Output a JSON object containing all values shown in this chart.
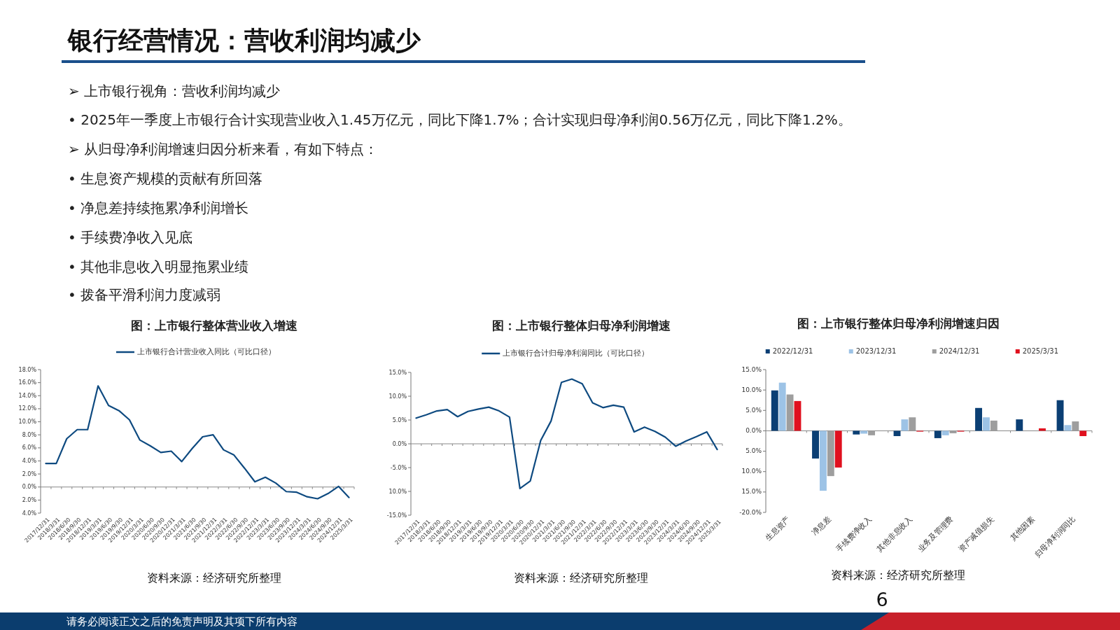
{
  "chart_data": [
    {
      "type": "other",
      "title": "银行经营情况：营收利润均减少",
      "annotations": [
        "➢ 上市银行视角：营收利润均减少",
        "• 2025年一季度上市银行合计实现营业收入1.45万亿元，同比下降1.7%；合计实现归母净利润0.56万亿元，同比下降1.2%。",
        "➢ 从归母净利润增速归因分析来看，有如下特点：",
        "• 生息资产规模的贡献有所回落",
        "• 净息差持续拖累净利润增长",
        "• 手续费净收入见底",
        "• 其他非息收入明显拖累业绩",
        "• 拨备平滑利润力度减弱",
        "请务必阅读正文之后的免责声明及其项下所有内容",
        "6"
      ]
    },
    {
      "type": "line",
      "title": "图：上市银行整体营业收入增速",
      "categories": [
        "2017/12/31",
        "2018/3/31",
        "2018/6/30",
        "2018/9/30",
        "2018/12/31",
        "2019/3/31",
        "2019/6/30",
        "2019/9/30",
        "2019/12/31",
        "2020/3/31",
        "2020/6/30",
        "2020/9/30",
        "2020/12/31",
        "2021/3/31",
        "2021/6/30",
        "2021/9/30",
        "2021/12/31",
        "2022/3/31",
        "2022/6/30",
        "2022/9/30",
        "2022/12/31",
        "2023/3/31",
        "2023/6/30",
        "2023/9/30",
        "2023/12/31",
        "2024/3/31",
        "2024/6/30",
        "2024/9/30",
        "2024/12/31",
        "2025/3/31"
      ],
      "series": [
        {
          "name": "上市银行合计营业收入同比（可比口径）",
          "color": "#0e4a80",
          "values": [
            3.6,
            3.6,
            7.4,
            8.8,
            8.8,
            15.5,
            12.5,
            11.7,
            10.3,
            7.2,
            6.3,
            5.3,
            5.5,
            3.9,
            5.9,
            7.7,
            8.0,
            5.7,
            4.9,
            2.9,
            0.8,
            1.5,
            0.6,
            -0.7,
            -0.8,
            -1.5,
            -1.8,
            -1.0,
            0.1,
            -1.6
          ]
        }
      ],
      "ylim": [
        -4,
        18
      ],
      "yticks": [
        {
          "value": -4,
          "label": "4.0%"
        },
        {
          "value": -2,
          "label": "2.0%"
        },
        {
          "value": 0,
          "label": "0.0%"
        },
        {
          "value": 2,
          "label": "2.0%"
        },
        {
          "value": 4,
          "label": "4.0%"
        },
        {
          "value": 6,
          "label": "6.0%"
        },
        {
          "value": 8,
          "label": "8.0%"
        },
        {
          "value": 10,
          "label": "10.0%"
        },
        {
          "value": 12,
          "label": "12.0%"
        },
        {
          "value": 14,
          "label": "14.0%"
        },
        {
          "value": 16,
          "label": "16.0%"
        },
        {
          "value": 18,
          "label": "18.0%"
        }
      ],
      "legend": "top",
      "annotations": [
        "资料来源：经济研究所整理"
      ]
    },
    {
      "type": "line",
      "title": "图：上市银行整体归母净利润增速",
      "categories": [
        "2017/12/31",
        "2018/3/31",
        "2018/6/30",
        "2018/9/30",
        "2018/12/31",
        "2019/3/31",
        "2019/6/30",
        "2019/9/30",
        "2019/12/31",
        "2020/3/31",
        "2020/6/30",
        "2020/9/30",
        "2020/12/31",
        "2021/3/31",
        "2021/6/30",
        "2021/9/30",
        "2021/12/31",
        "2022/3/31",
        "2022/6/30",
        "2022/9/30",
        "2022/12/31",
        "2023/3/31",
        "2023/6/30",
        "2023/9/30",
        "2023/12/31",
        "2024/3/31",
        "2024/6/30",
        "2024/9/30",
        "2024/12/31",
        "2025/3/31"
      ],
      "series": [
        {
          "name": "上市银行合计归母净利润同比（可比口径）",
          "color": "#0e4a80",
          "values": [
            5.4,
            6.1,
            6.9,
            7.2,
            5.7,
            6.8,
            7.3,
            7.7,
            6.9,
            5.6,
            -9.4,
            -7.8,
            0.7,
            4.8,
            12.9,
            13.6,
            12.6,
            8.6,
            7.6,
            8.1,
            7.7,
            2.5,
            3.5,
            2.6,
            1.4,
            -0.5,
            0.6,
            1.5,
            2.5,
            -1.2
          ]
        }
      ],
      "ylim": [
        -15,
        15
      ],
      "yticks": [
        {
          "value": -15,
          "label": "-15.0%"
        },
        {
          "value": -10,
          "label": "10.0%"
        },
        {
          "value": -5,
          "label": "-5.0%"
        },
        {
          "value": 0,
          "label": "0.0%"
        },
        {
          "value": 5,
          "label": "5.0%"
        },
        {
          "value": 10,
          "label": "10.0%"
        },
        {
          "value": 15,
          "label": "15.0%"
        }
      ],
      "legend": "top",
      "annotations": [
        "资料来源：经济研究所整理"
      ]
    },
    {
      "type": "bar",
      "title": "图：上市银行整体归母净利润增速归因",
      "categories": [
        "生息资产",
        "净息差",
        "手续费净收入",
        "其他非息收入",
        "业务及管理费",
        "资产减值损失",
        "其他因素",
        "归母净利润同比"
      ],
      "series": [
        {
          "name": "2022/12/31",
          "color": "#0b3f74",
          "values": [
            9.9,
            -6.8,
            -0.9,
            -1.3,
            -1.8,
            5.6,
            2.8,
            7.5
          ]
        },
        {
          "name": "2023/12/31",
          "color": "#9dc3e6",
          "values": [
            11.8,
            -14.7,
            -0.7,
            2.8,
            -1.1,
            3.3,
            null,
            1.4
          ]
        },
        {
          "name": "2024/12/31",
          "color": "#9e9e9e",
          "values": [
            8.9,
            -11.1,
            -1.1,
            3.3,
            -0.6,
            2.5,
            null,
            2.3
          ]
        },
        {
          "name": "2025/3/31",
          "color": "#e0101e",
          "values": [
            7.3,
            -9.0,
            null,
            -0.2,
            -0.2,
            null,
            0.6,
            -1.3
          ]
        }
      ],
      "ylim": [
        -20,
        15
      ],
      "yticks": [
        {
          "value": -20,
          "label": "-20.0%"
        },
        {
          "value": -15,
          "label": "15.0%"
        },
        {
          "value": -10,
          "label": "10.0%"
        },
        {
          "value": -5,
          "label": "5.0%"
        },
        {
          "value": 0,
          "label": "0.0%"
        },
        {
          "value": 5,
          "label": "5.0%"
        },
        {
          "value": 10,
          "label": "10.0%"
        },
        {
          "value": 15,
          "label": "15.0%"
        }
      ],
      "legend": "top",
      "annotations": [
        "资料来源：经济研究所整理"
      ]
    }
  ]
}
